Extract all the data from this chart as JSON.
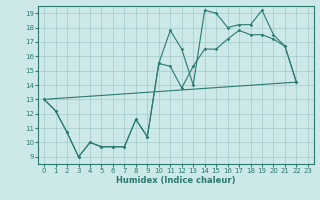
{
  "xlabel": "Humidex (Indice chaleur)",
  "xlim": [
    -0.5,
    23.5
  ],
  "ylim": [
    8.5,
    19.5
  ],
  "xticks": [
    0,
    1,
    2,
    3,
    4,
    5,
    6,
    7,
    8,
    9,
    10,
    11,
    12,
    13,
    14,
    15,
    16,
    17,
    18,
    19,
    20,
    21,
    22,
    23
  ],
  "yticks": [
    9,
    10,
    11,
    12,
    13,
    14,
    15,
    16,
    17,
    18,
    19
  ],
  "background_color": "#cce8e8",
  "grid_color": "#aacece",
  "line_color": "#2a7a6e",
  "series1_x": [
    0,
    1,
    2,
    3,
    4,
    5,
    6,
    7,
    8,
    9,
    10,
    11,
    12,
    13,
    14,
    15,
    16,
    17,
    18,
    19,
    20,
    21,
    22
  ],
  "series1_y": [
    13.0,
    12.2,
    10.7,
    9.0,
    10.0,
    9.7,
    9.7,
    9.7,
    11.6,
    10.4,
    15.5,
    17.8,
    16.5,
    14.0,
    19.2,
    19.0,
    18.0,
    18.2,
    18.2,
    19.2,
    17.5,
    16.7,
    14.2
  ],
  "series2_x": [
    0,
    1,
    2,
    3,
    4,
    5,
    6,
    7,
    8,
    9,
    10,
    11,
    12,
    13,
    14,
    15,
    16,
    17,
    18,
    19,
    20,
    21,
    22
  ],
  "series2_y": [
    13.0,
    12.2,
    10.7,
    9.0,
    10.0,
    9.7,
    9.7,
    9.7,
    11.6,
    10.4,
    15.5,
    15.3,
    13.8,
    15.3,
    16.5,
    16.5,
    17.2,
    17.8,
    17.5,
    17.5,
    17.2,
    16.7,
    14.2
  ],
  "series3_x": [
    0,
    22
  ],
  "series3_y": [
    13.0,
    14.2
  ]
}
